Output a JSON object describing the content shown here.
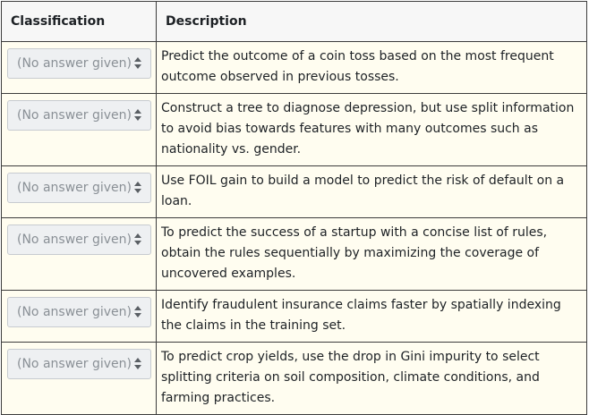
{
  "table": {
    "headers": {
      "classification": "Classification",
      "description": "Description"
    },
    "rows": [
      {
        "selected": "(No answer given)",
        "description": "Predict the outcome of a coin toss based on the most frequent outcome observed in previous tosses."
      },
      {
        "selected": "(No answer given)",
        "description": "Construct a tree to diagnose depression, but use split information to avoid bias towards features with many outcomes such as nationality vs. gender."
      },
      {
        "selected": "(No answer given)",
        "description": "Use FOIL gain to build a model to predict the risk of default on a loan."
      },
      {
        "selected": "(No answer given)",
        "description": "To predict the success of a startup with a concise list of rules, obtain the rules sequentially by maximizing the coverage of uncovered examples."
      },
      {
        "selected": "(No answer given)",
        "description": "Identify fraudulent insurance claims faster by spatially indexing the claims in the training set."
      },
      {
        "selected": "(No answer given)",
        "description": "To predict crop yields, use the drop in Gini impurity to select splitting criteria on soil composition, climate conditions, and farming practices."
      }
    ]
  },
  "icons": {
    "select_caret": "up-down-caret-icon"
  }
}
